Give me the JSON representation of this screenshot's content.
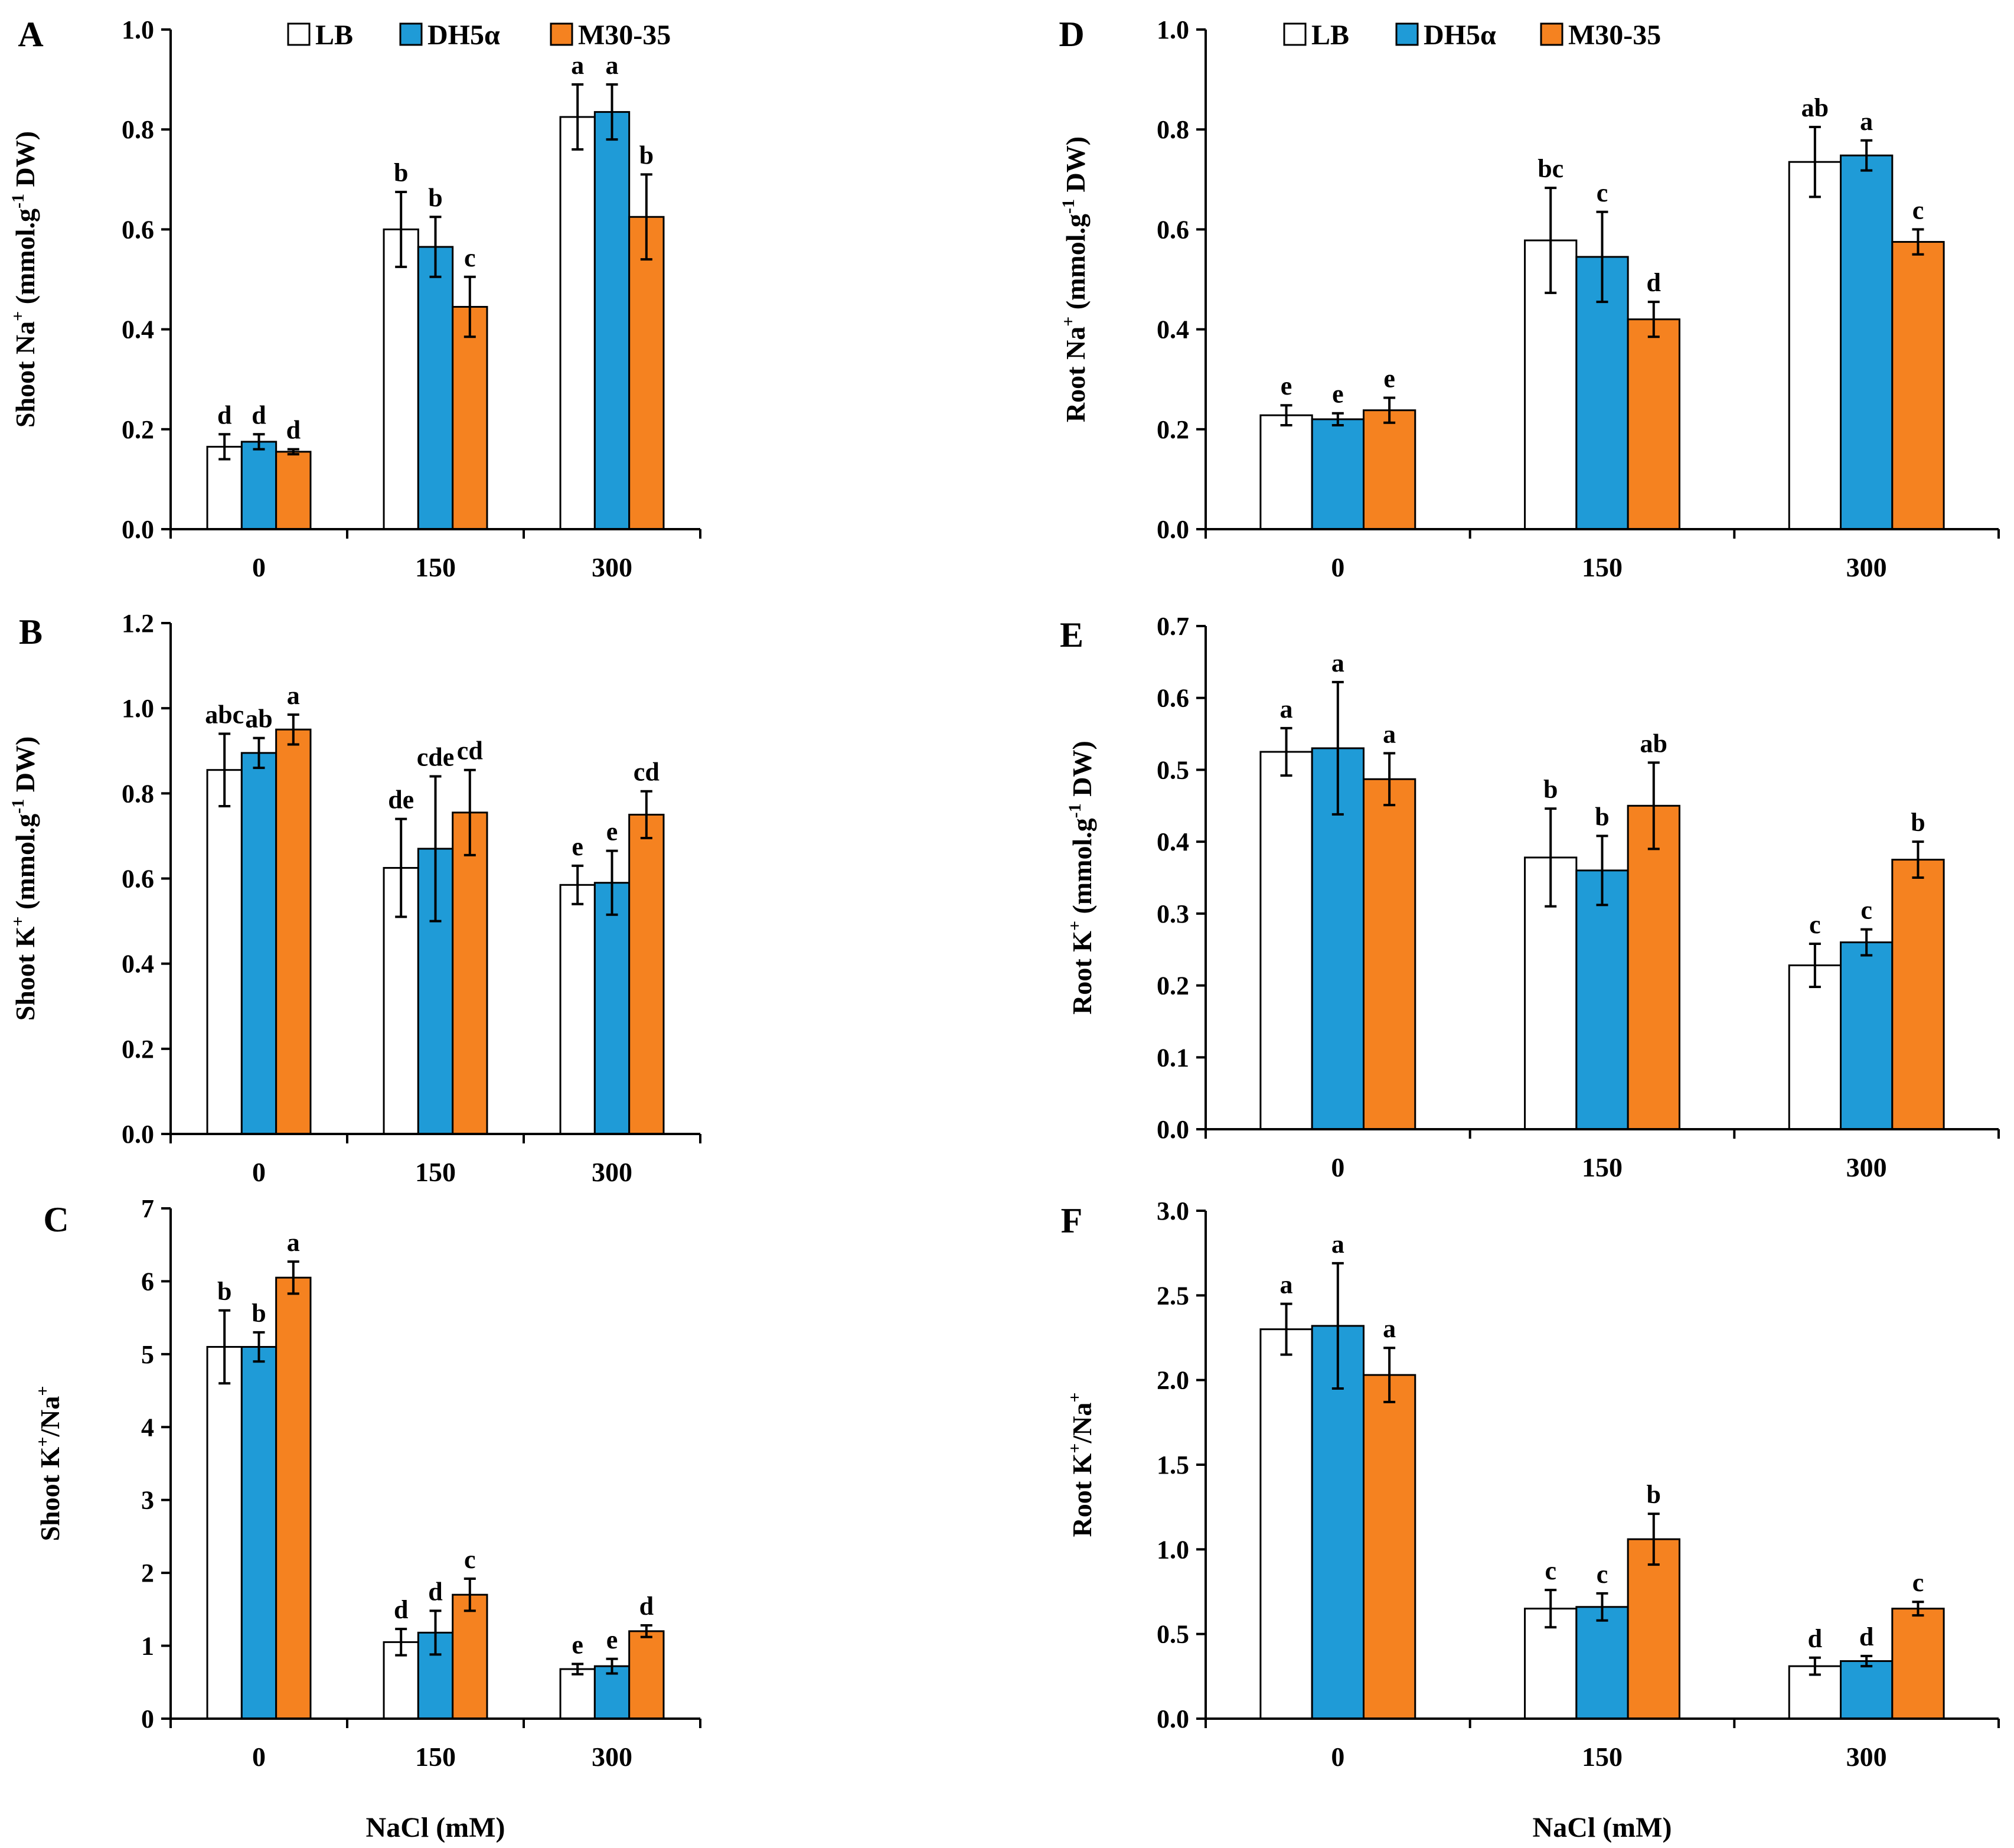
{
  "legend": {
    "LB": "LB",
    "DH5a": "DH5α",
    "M30": "M30-35"
  },
  "colors": {
    "LB": "#ffffff",
    "DH5a": "#1f9bd7",
    "M30": "#f58220",
    "axis": "#000000"
  },
  "chart_data": [
    {
      "id": "A",
      "panel_label": "A",
      "type": "bar",
      "title": "",
      "ylabel_main": "Shoot Na",
      "ylabel_sup": "+",
      "ylabel_unit": "(mmol.g",
      "ylabel_unit_sup": "-1",
      "ylabel_end": "DW)",
      "xlabel": "",
      "categories": [
        "0",
        "150",
        "300"
      ],
      "ylim": [
        0,
        1.0
      ],
      "yticks": [
        0,
        0.2,
        0.4,
        0.6,
        0.8,
        1.0
      ],
      "ytick_labels": [
        "0.0",
        "0.2",
        "0.4",
        "0.6",
        "0.8",
        "1.0"
      ],
      "show_legend": true,
      "series": [
        {
          "name": "LB",
          "values": [
            0.165,
            0.6,
            0.825
          ],
          "errors": [
            0.025,
            0.075,
            0.065
          ],
          "letters": [
            "d",
            "b",
            "a"
          ]
        },
        {
          "name": "DH5α",
          "values": [
            0.175,
            0.565,
            0.835
          ],
          "errors": [
            0.015,
            0.06,
            0.055
          ],
          "letters": [
            "d",
            "b",
            "a"
          ]
        },
        {
          "name": "M30-35",
          "values": [
            0.155,
            0.445,
            0.625
          ],
          "errors": [
            0.005,
            0.06,
            0.085
          ],
          "letters": [
            "d",
            "c",
            "b"
          ]
        }
      ]
    },
    {
      "id": "B",
      "panel_label": "B",
      "type": "bar",
      "title": "",
      "ylabel_main": "Shoot K",
      "ylabel_sup": "+",
      "ylabel_unit": "(mmol.g",
      "ylabel_unit_sup": "-1",
      "ylabel_end": "DW)",
      "xlabel": "",
      "categories": [
        "0",
        "150",
        "300"
      ],
      "ylim": [
        0,
        1.2
      ],
      "yticks": [
        0,
        0.2,
        0.4,
        0.6,
        0.8,
        1.0,
        1.2
      ],
      "ytick_labels": [
        "0.0",
        "0.2",
        "0.4",
        "0.6",
        "0.8",
        "1.0",
        "1.2"
      ],
      "show_legend": false,
      "series": [
        {
          "name": "LB",
          "values": [
            0.855,
            0.625,
            0.585
          ],
          "errors": [
            0.085,
            0.115,
            0.045
          ],
          "letters": [
            "abc",
            "de",
            "e"
          ]
        },
        {
          "name": "DH5α",
          "values": [
            0.895,
            0.67,
            0.59
          ],
          "errors": [
            0.035,
            0.17,
            0.075
          ],
          "letters": [
            "ab",
            "cde",
            "e"
          ]
        },
        {
          "name": "M30-35",
          "values": [
            0.95,
            0.755,
            0.75
          ],
          "errors": [
            0.035,
            0.1,
            0.055
          ],
          "letters": [
            "a",
            "cd",
            "cd"
          ]
        }
      ]
    },
    {
      "id": "C",
      "panel_label": "C",
      "type": "bar",
      "title": "",
      "ylabel_main": "Shoot K",
      "ylabel_sup": "+",
      "ylabel_mid": "/Na",
      "ylabel_sup2": "+",
      "xlabel": "NaCl (mM)",
      "categories": [
        "0",
        "150",
        "300"
      ],
      "ylim": [
        0,
        7
      ],
      "yticks": [
        0,
        1,
        2,
        3,
        4,
        5,
        6,
        7
      ],
      "ytick_labels": [
        "0",
        "1",
        "2",
        "3",
        "4",
        "5",
        "6",
        "7"
      ],
      "show_legend": false,
      "series": [
        {
          "name": "LB",
          "values": [
            5.1,
            1.05,
            0.68
          ],
          "errors": [
            0.5,
            0.18,
            0.07
          ],
          "letters": [
            "b",
            "d",
            "e"
          ]
        },
        {
          "name": "DH5α",
          "values": [
            5.1,
            1.18,
            0.72
          ],
          "errors": [
            0.2,
            0.3,
            0.1
          ],
          "letters": [
            "b",
            "d",
            "e"
          ]
        },
        {
          "name": "M30-35",
          "values": [
            6.05,
            1.7,
            1.2
          ],
          "errors": [
            0.22,
            0.22,
            0.08
          ],
          "letters": [
            "a",
            "c",
            "d"
          ]
        }
      ]
    },
    {
      "id": "D",
      "panel_label": "D",
      "type": "bar",
      "title": "",
      "ylabel_main": "Root Na",
      "ylabel_sup": "+",
      "ylabel_unit": "(mmol.g",
      "ylabel_unit_sup": "-1",
      "ylabel_end": "DW)",
      "xlabel": "",
      "categories": [
        "0",
        "150",
        "300"
      ],
      "ylim": [
        0,
        1.0
      ],
      "yticks": [
        0,
        0.2,
        0.4,
        0.6,
        0.8,
        1.0
      ],
      "ytick_labels": [
        "0.0",
        "0.2",
        "0.4",
        "0.6",
        "0.8",
        "1.0"
      ],
      "show_legend": true,
      "series": [
        {
          "name": "LB",
          "values": [
            0.228,
            0.578,
            0.735
          ],
          "errors": [
            0.02,
            0.105,
            0.07
          ],
          "letters": [
            "e",
            "bc",
            "ab"
          ]
        },
        {
          "name": "DH5α",
          "values": [
            0.22,
            0.545,
            0.748
          ],
          "errors": [
            0.012,
            0.09,
            0.03
          ],
          "letters": [
            "e",
            "c",
            "a"
          ]
        },
        {
          "name": "M30-35",
          "values": [
            0.238,
            0.42,
            0.575
          ],
          "errors": [
            0.025,
            0.035,
            0.025
          ],
          "letters": [
            "e",
            "d",
            "c"
          ]
        }
      ]
    },
    {
      "id": "E",
      "panel_label": "E",
      "type": "bar",
      "title": "",
      "ylabel_main": "Root K",
      "ylabel_sup": "+",
      "ylabel_unit": "(mmol.g",
      "ylabel_unit_sup": "-1",
      "ylabel_end": "DW)",
      "xlabel": "",
      "categories": [
        "0",
        "150",
        "300"
      ],
      "ylim": [
        0,
        0.7
      ],
      "yticks": [
        0,
        0.1,
        0.2,
        0.3,
        0.4,
        0.5,
        0.6,
        0.7
      ],
      "ytick_labels": [
        "0.0",
        "0.1",
        "0.2",
        "0.3",
        "0.4",
        "0.5",
        "0.6",
        "0.7"
      ],
      "show_legend": false,
      "series": [
        {
          "name": "LB",
          "values": [
            0.525,
            0.378,
            0.228
          ],
          "errors": [
            0.033,
            0.068,
            0.03
          ],
          "letters": [
            "a",
            "b",
            "c"
          ]
        },
        {
          "name": "DH5α",
          "values": [
            0.53,
            0.36,
            0.26
          ],
          "errors": [
            0.092,
            0.048,
            0.018
          ],
          "letters": [
            "a",
            "b",
            "c"
          ]
        },
        {
          "name": "M30-35",
          "values": [
            0.487,
            0.45,
            0.375
          ],
          "errors": [
            0.036,
            0.06,
            0.025
          ],
          "letters": [
            "a",
            "ab",
            "b"
          ]
        }
      ]
    },
    {
      "id": "F",
      "panel_label": "F",
      "type": "bar",
      "title": "",
      "ylabel_main": "Root K",
      "ylabel_sup": "+",
      "ylabel_mid": "/Na",
      "ylabel_sup2": "+",
      "xlabel": "NaCl (mM)",
      "categories": [
        "0",
        "150",
        "300"
      ],
      "ylim": [
        0,
        3.0
      ],
      "yticks": [
        0,
        0.5,
        1.0,
        1.5,
        2.0,
        2.5,
        3.0
      ],
      "ytick_labels": [
        "0.0",
        "0.5",
        "1.0",
        "1.5",
        "2.0",
        "2.5",
        "3.0"
      ],
      "show_legend": false,
      "series": [
        {
          "name": "LB",
          "values": [
            2.3,
            0.65,
            0.31
          ],
          "errors": [
            0.15,
            0.11,
            0.05
          ],
          "letters": [
            "a",
            "c",
            "d"
          ]
        },
        {
          "name": "DH5α",
          "values": [
            2.32,
            0.66,
            0.34
          ],
          "errors": [
            0.37,
            0.08,
            0.03
          ],
          "letters": [
            "a",
            "c",
            "d"
          ]
        },
        {
          "name": "M30-35",
          "values": [
            2.03,
            1.06,
            0.65
          ],
          "errors": [
            0.16,
            0.15,
            0.04
          ],
          "letters": [
            "a",
            "b",
            "c"
          ]
        }
      ]
    }
  ]
}
